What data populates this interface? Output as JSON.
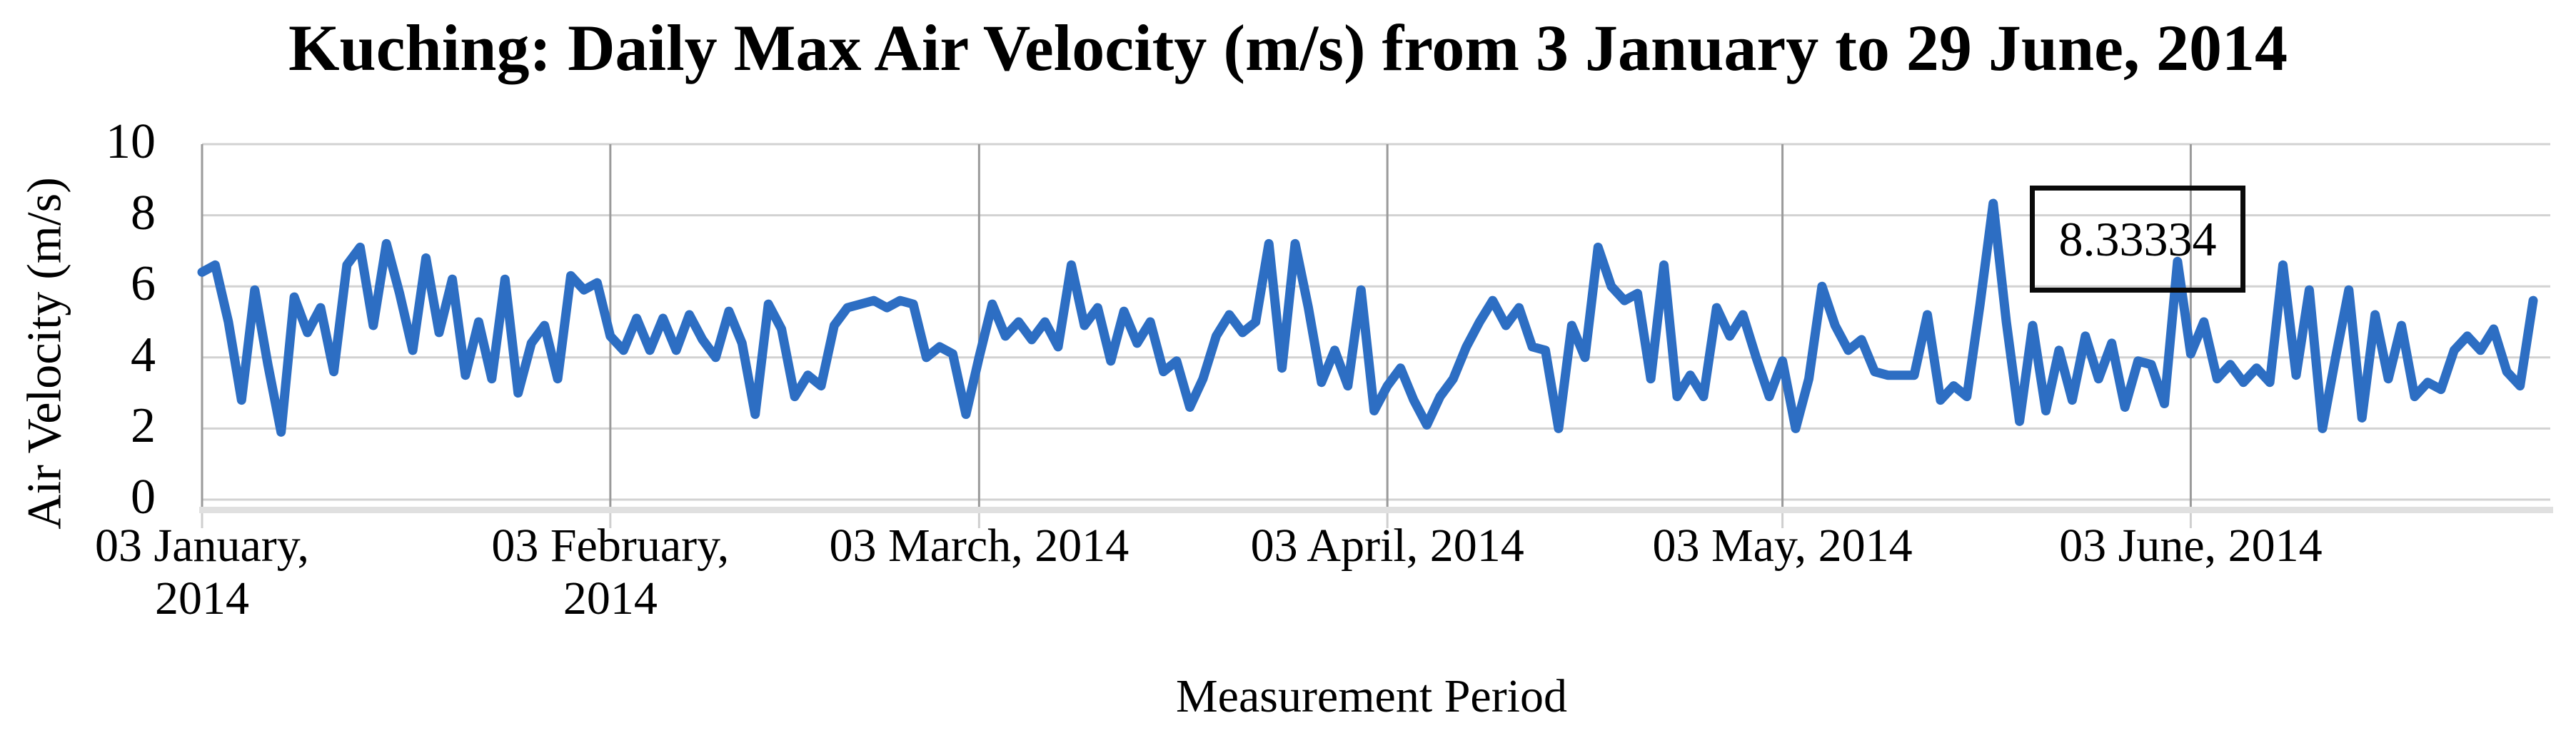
{
  "title": "Kuching: Daily Max Air Velocity (m/s) from 3 January to 29 June, 2014",
  "y_axis": {
    "label": "Air Velocity (m/s)",
    "ticks": [
      10,
      8,
      6,
      4,
      2,
      0
    ]
  },
  "x_axis": {
    "label": "Measurement Period",
    "ticks": [
      {
        "label_lines": [
          "03 January,",
          "2014"
        ],
        "day": 0
      },
      {
        "label_lines": [
          "03 February,",
          "2014"
        ],
        "day": 31
      },
      {
        "label_lines": [
          "03 March, 2014"
        ],
        "day": 59
      },
      {
        "label_lines": [
          "03 April, 2014"
        ],
        "day": 90
      },
      {
        "label_lines": [
          "03 May, 2014"
        ],
        "day": 120
      },
      {
        "label_lines": [
          "03 June, 2014"
        ],
        "day": 151
      }
    ]
  },
  "annotation": {
    "text": "8.33334"
  },
  "colors": {
    "line": "#2d6ec3",
    "grid_horizontal": "#d2d2d2",
    "grid_vertical": "#9a9a9a",
    "axis_band": "#e0e0e0",
    "tick_mark": "#cfcfcf",
    "text": "#000000",
    "annotation_border": "#0a0a0a"
  },
  "chart_data": {
    "type": "line",
    "title": "Kuching: Daily Max Air Velocity (m/s) from 3 January to 29 June, 2014",
    "xlabel": "Measurement Period",
    "ylabel": "Air Velocity (m/s)",
    "ylim": [
      0,
      10
    ],
    "y_ticks": [
      0,
      2,
      4,
      6,
      8,
      10
    ],
    "x_start_date": "2014-01-03",
    "x_end_date": "2014-06-29",
    "frequency": "daily",
    "grid": "horizontal gridlines plus vertical gridlines at monthly x ticks",
    "legend_position": "none",
    "annotation": {
      "text": "8.33334",
      "value": 8.33334,
      "index": 136,
      "date": "2014-05-19"
    },
    "series": [
      {
        "name": "Daily Max Air Velocity (m/s)",
        "values": [
          6.4,
          6.6,
          5.0,
          2.8,
          5.9,
          3.8,
          1.9,
          5.7,
          4.7,
          5.4,
          3.6,
          6.6,
          7.1,
          4.9,
          7.2,
          5.8,
          4.2,
          6.8,
          4.7,
          6.2,
          3.5,
          5.0,
          3.4,
          6.2,
          3.0,
          4.4,
          4.9,
          3.4,
          6.3,
          5.9,
          6.1,
          4.6,
          4.2,
          5.1,
          4.2,
          5.1,
          4.2,
          5.2,
          4.5,
          4.0,
          5.3,
          4.4,
          2.4,
          5.5,
          4.8,
          2.9,
          3.5,
          3.2,
          4.9,
          5.4,
          5.5,
          5.6,
          5.4,
          5.6,
          5.5,
          4.0,
          4.3,
          4.1,
          2.4,
          4.0,
          5.5,
          4.6,
          5.0,
          4.5,
          5.0,
          4.3,
          6.6,
          4.9,
          5.4,
          3.9,
          5.3,
          4.4,
          5.0,
          3.6,
          3.9,
          2.6,
          3.4,
          4.6,
          5.2,
          4.7,
          5.0,
          7.2,
          3.7,
          7.2,
          5.4,
          3.3,
          4.2,
          3.2,
          5.9,
          2.5,
          3.2,
          3.7,
          2.8,
          2.1,
          2.9,
          3.4,
          4.3,
          5.0,
          5.6,
          4.9,
          5.4,
          4.3,
          4.2,
          2.0,
          4.9,
          4.0,
          7.1,
          6.0,
          5.6,
          5.8,
          3.4,
          6.6,
          2.9,
          3.5,
          2.9,
          5.4,
          4.6,
          5.2,
          4.0,
          2.9,
          3.9,
          2.0,
          3.4,
          6.0,
          4.9,
          4.2,
          4.5,
          3.6,
          3.5,
          3.5,
          3.5,
          5.2,
          2.8,
          3.2,
          2.9,
          5.5,
          8.33334,
          5.0,
          2.2,
          4.9,
          2.5,
          4.2,
          2.8,
          4.6,
          3.4,
          4.4,
          2.6,
          3.9,
          3.8,
          2.7,
          6.7,
          4.1,
          5.0,
          3.4,
          3.8,
          3.3,
          3.7,
          3.3,
          6.6,
          3.5,
          5.9,
          2.0,
          4.0,
          5.9,
          2.3,
          5.2,
          3.4,
          4.9,
          2.9,
          3.3,
          3.1,
          4.2,
          4.6,
          4.2,
          4.8,
          3.6,
          3.2,
          5.6
        ]
      }
    ]
  }
}
